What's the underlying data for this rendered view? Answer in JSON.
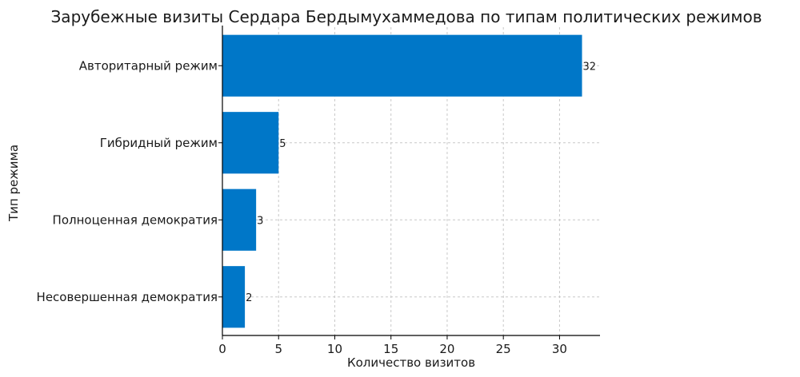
{
  "chart_data": {
    "type": "bar",
    "orientation": "horizontal",
    "title": "Зарубежные визиты Сердара Бердымухаммедова по типам политических режимов",
    "xlabel": "Количество визитов",
    "ylabel": "Тип режима",
    "categories": [
      "Авторитарный режим",
      "Гибридный режим",
      "Полноценная демократия",
      "Несовершенная демократия"
    ],
    "values": [
      32,
      5,
      3,
      2
    ],
    "data_labels": [
      "32",
      "5",
      "3",
      "2"
    ],
    "xlim": [
      0,
      33.6
    ],
    "xticks": [
      0,
      5,
      10,
      15,
      20,
      25,
      30
    ],
    "xtick_labels": [
      "0",
      "5",
      "10",
      "15",
      "20",
      "25",
      "30"
    ],
    "grid": true,
    "bar_color": "#0077c8"
  }
}
